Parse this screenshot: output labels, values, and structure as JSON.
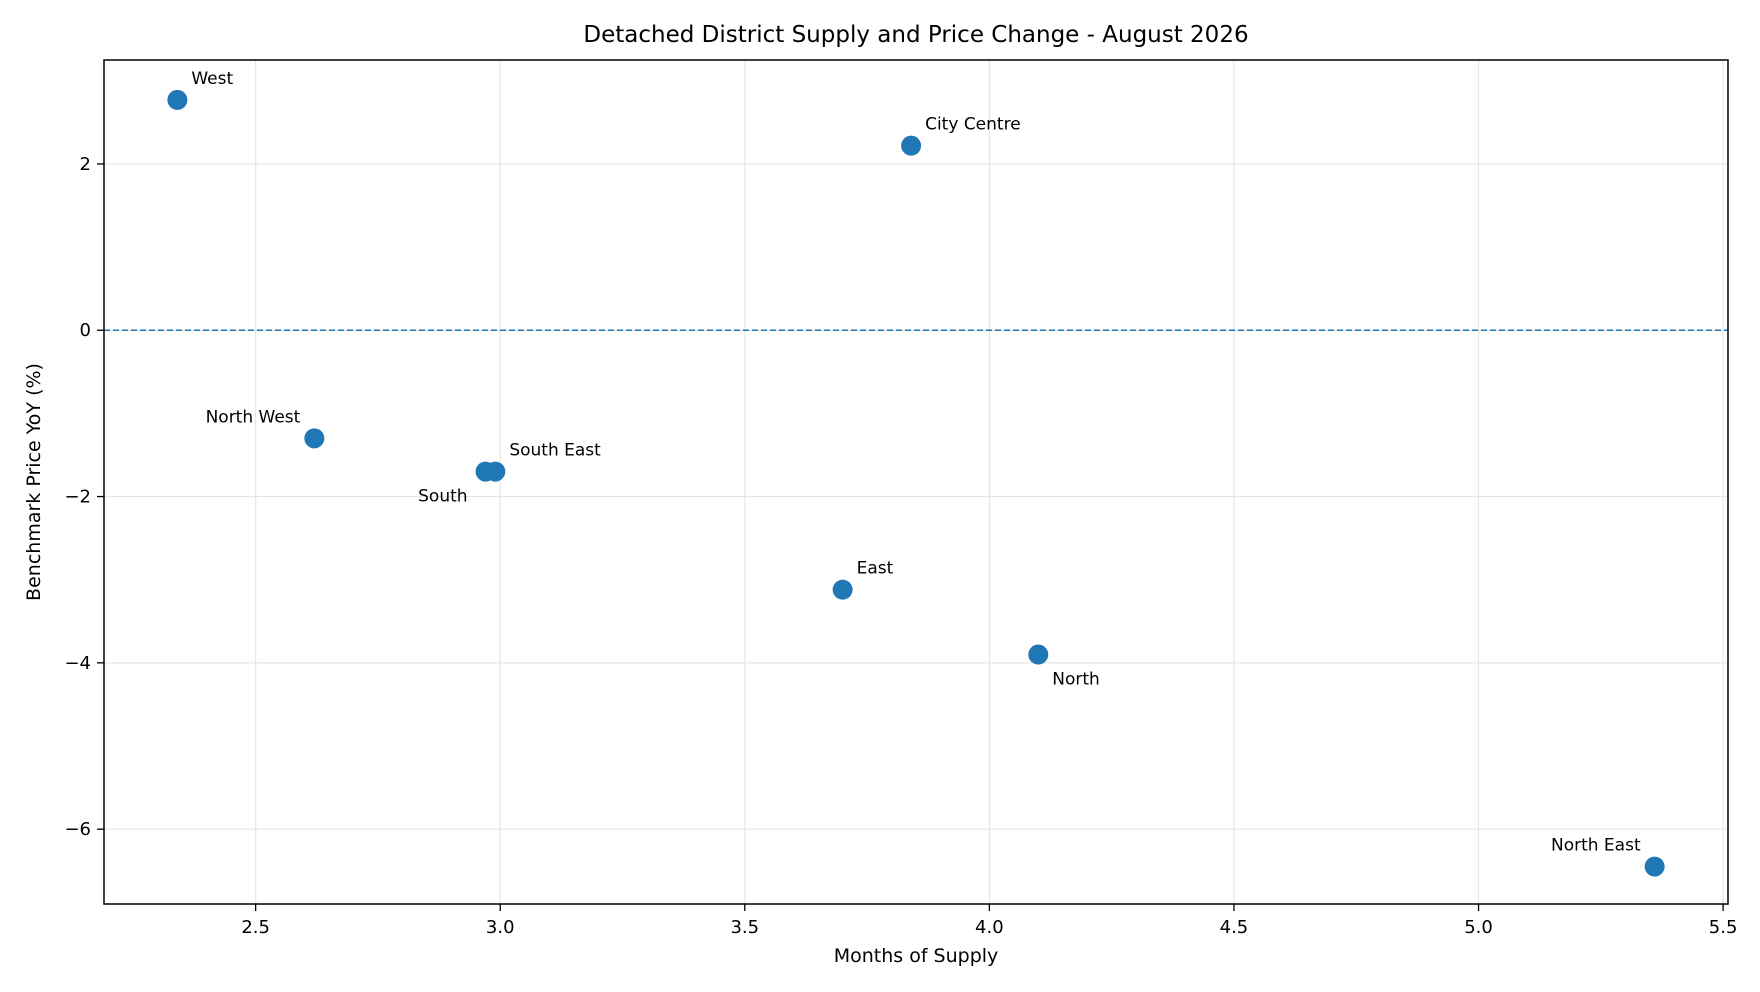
{
  "chart_data": {
    "type": "scatter",
    "title": "Detached District Supply and Price Change - August 2026",
    "xlabel": "Months of Supply",
    "ylabel": "Benchmark Price YoY (%)",
    "xlim": [
      2.19,
      5.51
    ],
    "ylim": [
      -6.9,
      3.25
    ],
    "xticks": [
      2.5,
      3.0,
      3.5,
      4.0,
      4.5,
      5.0,
      5.5
    ],
    "xtick_labels": [
      "2.5",
      "3.0",
      "3.5",
      "4.0",
      "4.5",
      "5.0",
      "5.5"
    ],
    "yticks": [
      2,
      0,
      -2,
      -4,
      -6
    ],
    "ytick_labels": [
      "2",
      "0",
      "−2",
      "−4",
      "−6"
    ],
    "grid": true,
    "reference_line": {
      "y": 0,
      "style": "dashed"
    },
    "marker_color": "#1f77b4",
    "points": [
      {
        "label": "West",
        "x": 2.34,
        "y": 2.77,
        "label_pos": "upper-right"
      },
      {
        "label": "City Centre",
        "x": 3.84,
        "y": 2.22,
        "label_pos": "upper-right"
      },
      {
        "label": "North West",
        "x": 2.62,
        "y": -1.3,
        "label_pos": "upper-left"
      },
      {
        "label": "South",
        "x": 2.97,
        "y": -1.7,
        "label_pos": "lower-left"
      },
      {
        "label": "South East",
        "x": 2.99,
        "y": -1.7,
        "label_pos": "upper-right"
      },
      {
        "label": "East",
        "x": 3.7,
        "y": -3.12,
        "label_pos": "upper-right"
      },
      {
        "label": "North",
        "x": 4.1,
        "y": -3.9,
        "label_pos": "lower-right"
      },
      {
        "label": "North East",
        "x": 5.36,
        "y": -6.45,
        "label_pos": "upper-left"
      }
    ]
  }
}
